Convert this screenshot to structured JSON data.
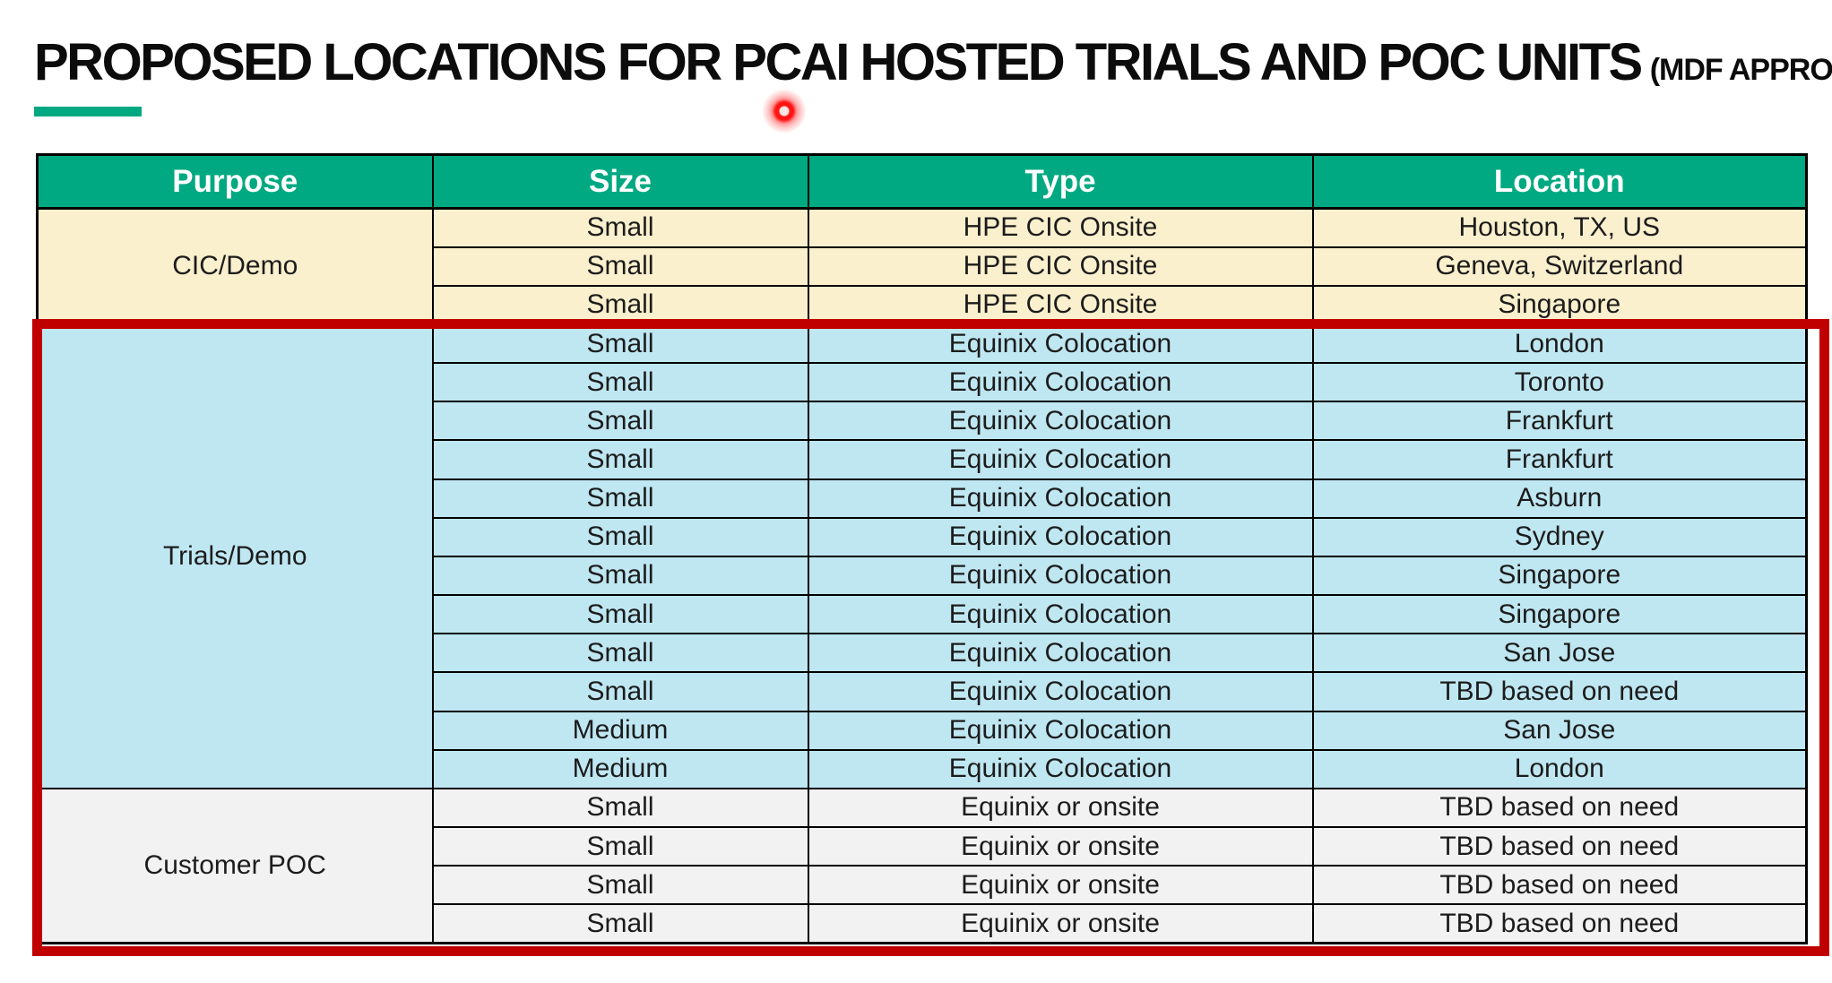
{
  "slide": {
    "title": "PROPOSED LOCATIONS FOR PCAI HOSTED TRIALS AND POC UNITS",
    "title_suffix": "(MDF APPROVED)"
  },
  "colors": {
    "accent_green": "#01A982",
    "header_bg": "#01A982",
    "header_text": "#FFFFFF",
    "section_cic_demo_bg": "#FBF0CD",
    "section_trials_demo_bg": "#BFE7F2",
    "section_customer_poc_bg": "#F2F2F2",
    "annotation_red_box": "#C00000",
    "laser_pointer_red": "#FF1414",
    "grid_border": "#000000"
  },
  "table": {
    "headers": [
      "Purpose",
      "Size",
      "Type",
      "Location"
    ],
    "sections": [
      {
        "purpose": "CIC/Demo",
        "theme": "cream",
        "rows": [
          [
            "Small",
            "HPE CIC Onsite",
            "Houston, TX, US"
          ],
          [
            "Small",
            "HPE CIC Onsite",
            "Geneva, Switzerland"
          ],
          [
            "Small",
            "HPE CIC Onsite",
            "Singapore"
          ]
        ]
      },
      {
        "purpose": "Trials/Demo",
        "theme": "blue",
        "rows": [
          [
            "Small",
            "Equinix Colocation",
            "London"
          ],
          [
            "Small",
            "Equinix Colocation",
            "Toronto"
          ],
          [
            "Small",
            "Equinix Colocation",
            "Frankfurt"
          ],
          [
            "Small",
            "Equinix Colocation",
            "Frankfurt"
          ],
          [
            "Small",
            "Equinix Colocation",
            "Asburn"
          ],
          [
            "Small",
            "Equinix Colocation",
            "Sydney"
          ],
          [
            "Small",
            "Equinix Colocation",
            "Singapore"
          ],
          [
            "Small",
            "Equinix Colocation",
            "Singapore"
          ],
          [
            "Small",
            "Equinix Colocation",
            "San Jose"
          ],
          [
            "Small",
            "Equinix Colocation",
            "TBD based on need"
          ],
          [
            "Medium",
            "Equinix Colocation",
            "San Jose"
          ],
          [
            "Medium",
            "Equinix Colocation",
            "London"
          ]
        ]
      },
      {
        "purpose": "Customer POC",
        "theme": "gray",
        "rows": [
          [
            "Small",
            "Equinix or onsite",
            "TBD based on need"
          ],
          [
            "Small",
            "Equinix or onsite",
            "TBD based on need"
          ],
          [
            "Small",
            "Equinix or onsite",
            "TBD based on need"
          ],
          [
            "Small",
            "Equinix or onsite",
            "TBD based on need"
          ]
        ]
      }
    ]
  },
  "annotations": {
    "red_box": "red-rectangle-highlight-around-trials-and-poc-sections",
    "laser_pointer": "red-laser-pointer-dot"
  }
}
